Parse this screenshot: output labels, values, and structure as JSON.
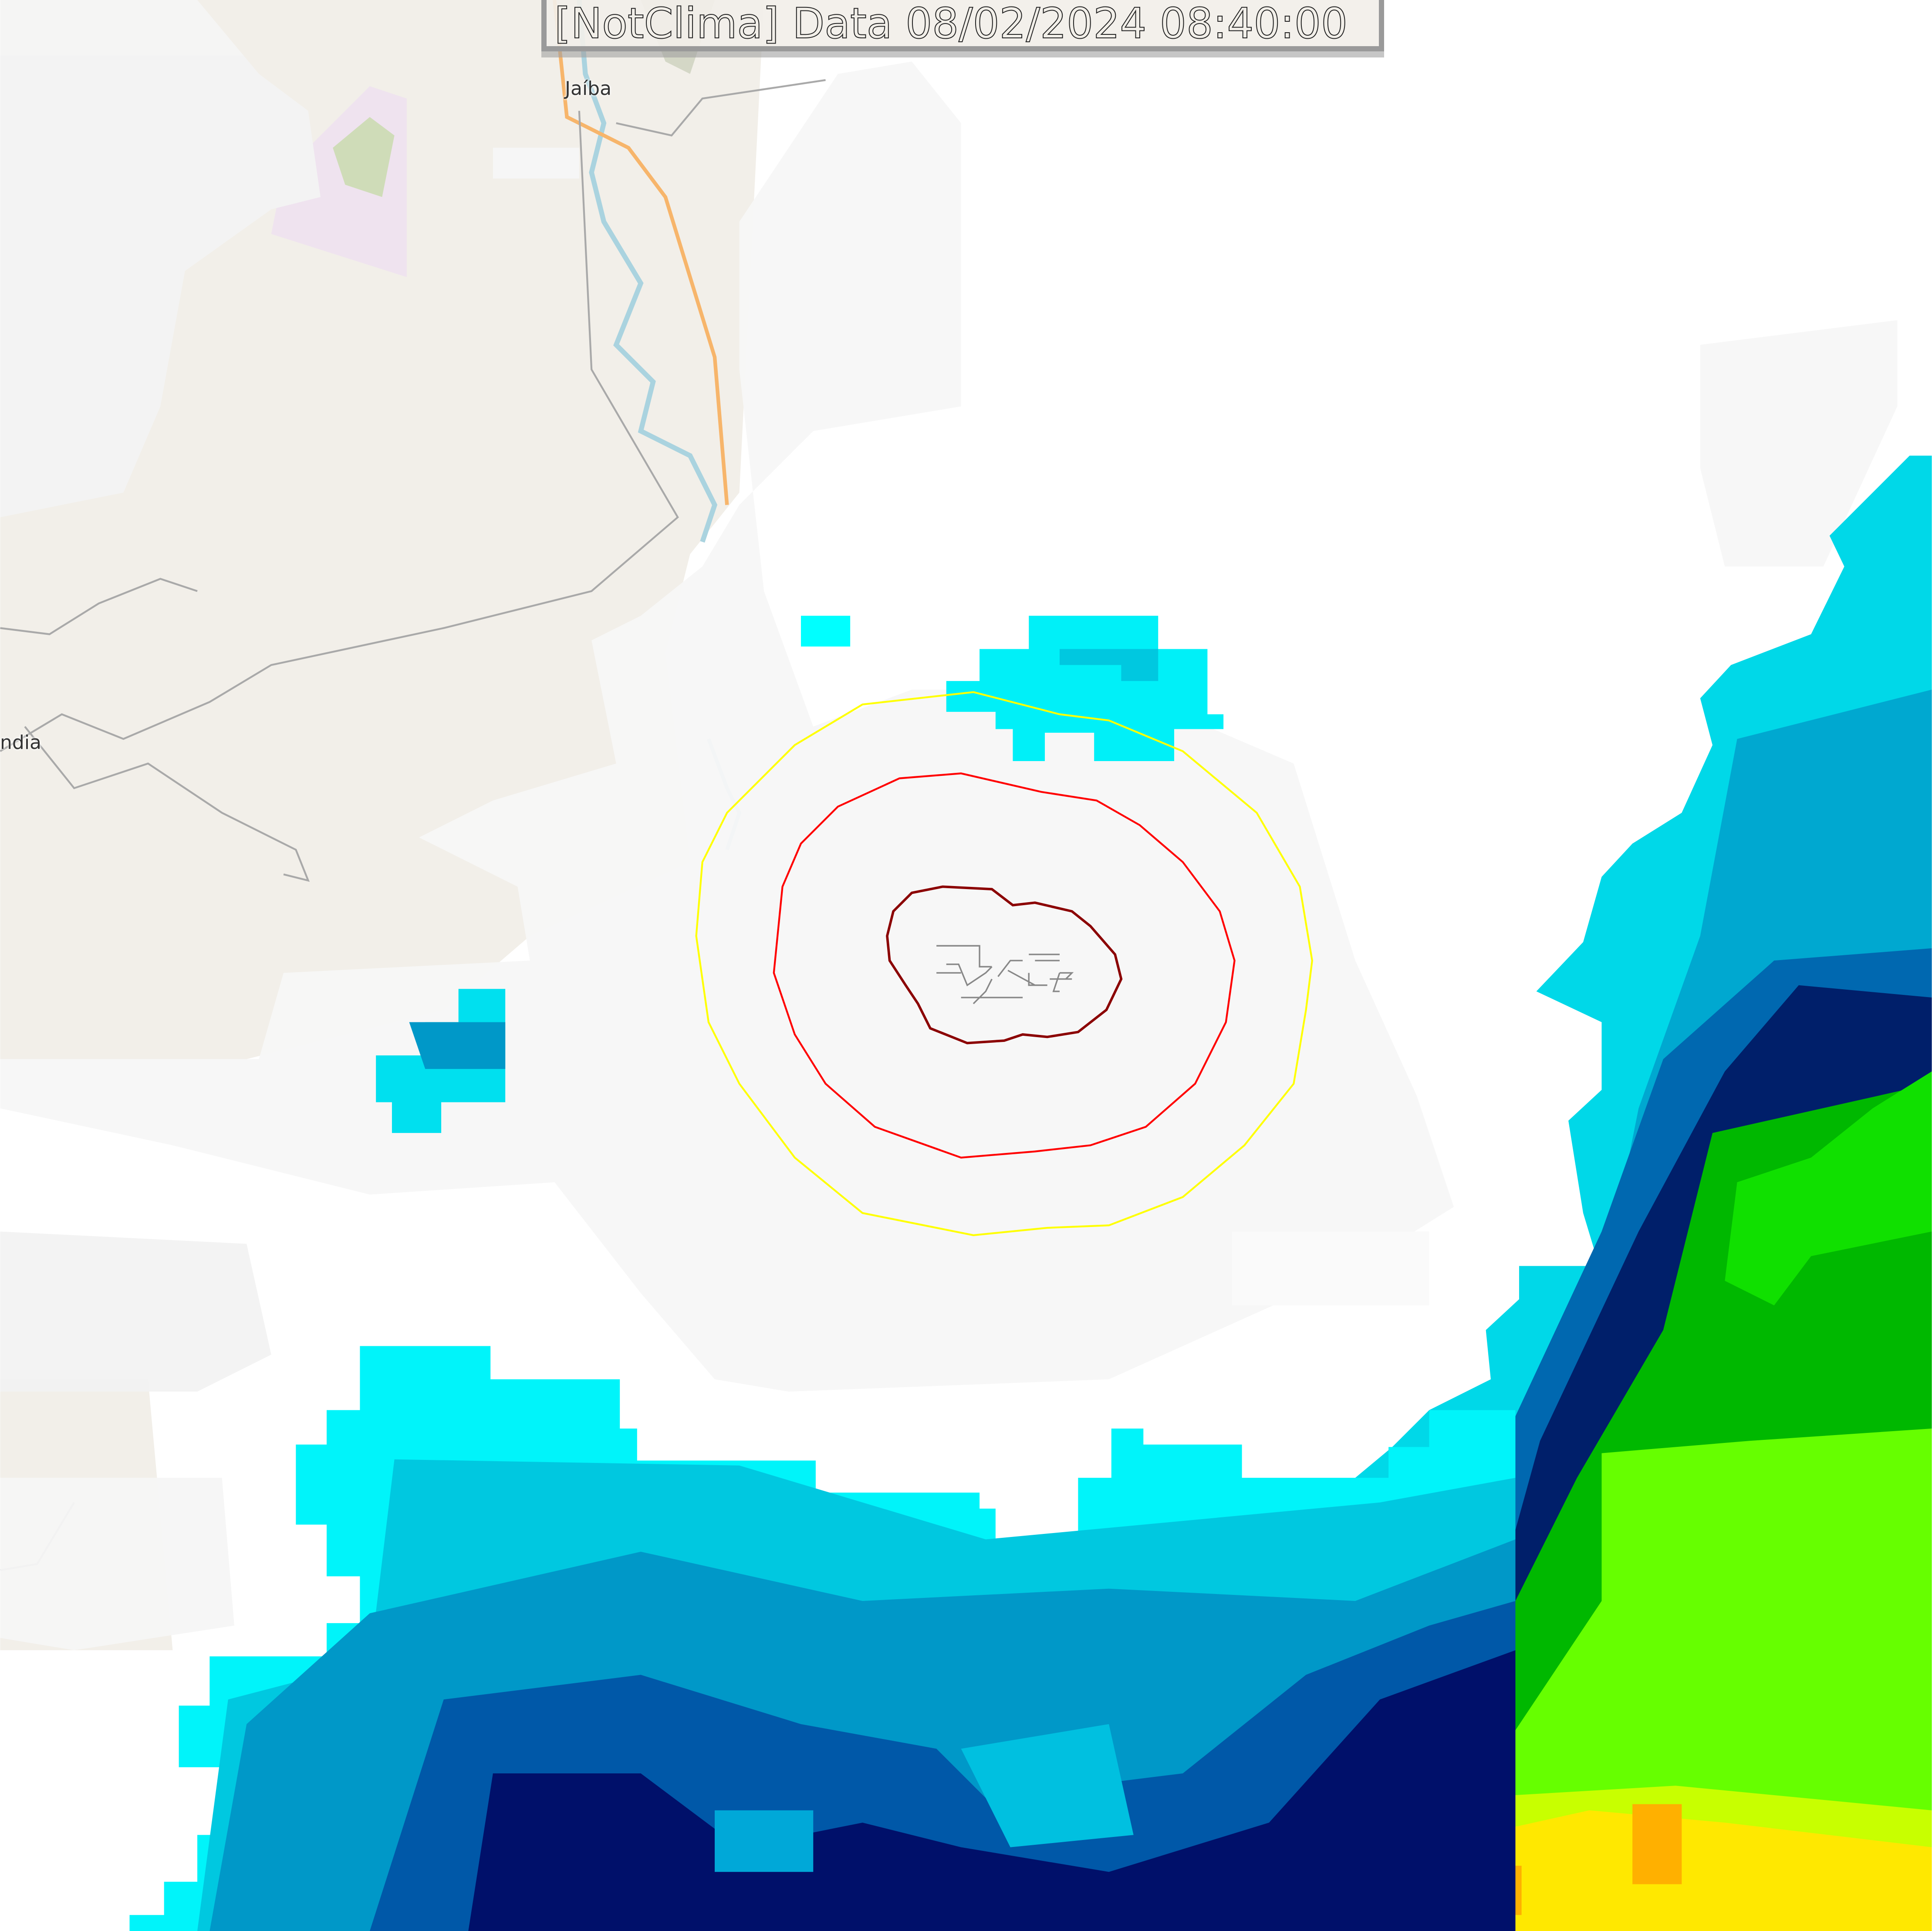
{
  "title": "[NotClima] Data 08/02/2024 08:40:00",
  "places": [
    {
      "name": "Jaíba"
    },
    {
      "name": "ndia"
    }
  ],
  "layers": {
    "basemap": "OpenStreetMap",
    "radar_reflectivity": true,
    "range_rings": [
      {
        "color": "#8b0000"
      },
      {
        "color": "#ff0000"
      },
      {
        "color": "#ffff00"
      }
    ]
  },
  "colors": {
    "land": "#f2efe9",
    "river": "#aad3df",
    "road": "#f7b56b",
    "cloud": "#f7f7f7",
    "radar_scale": [
      "#00ffff",
      "#00d8e8",
      "#00a8d0",
      "#0070b8",
      "#003f96",
      "#000a68",
      "#005a3c",
      "#00c800",
      "#00ff00",
      "#7fff00",
      "#ccff00",
      "#ffff00",
      "#ffd000",
      "#ffb000"
    ]
  }
}
